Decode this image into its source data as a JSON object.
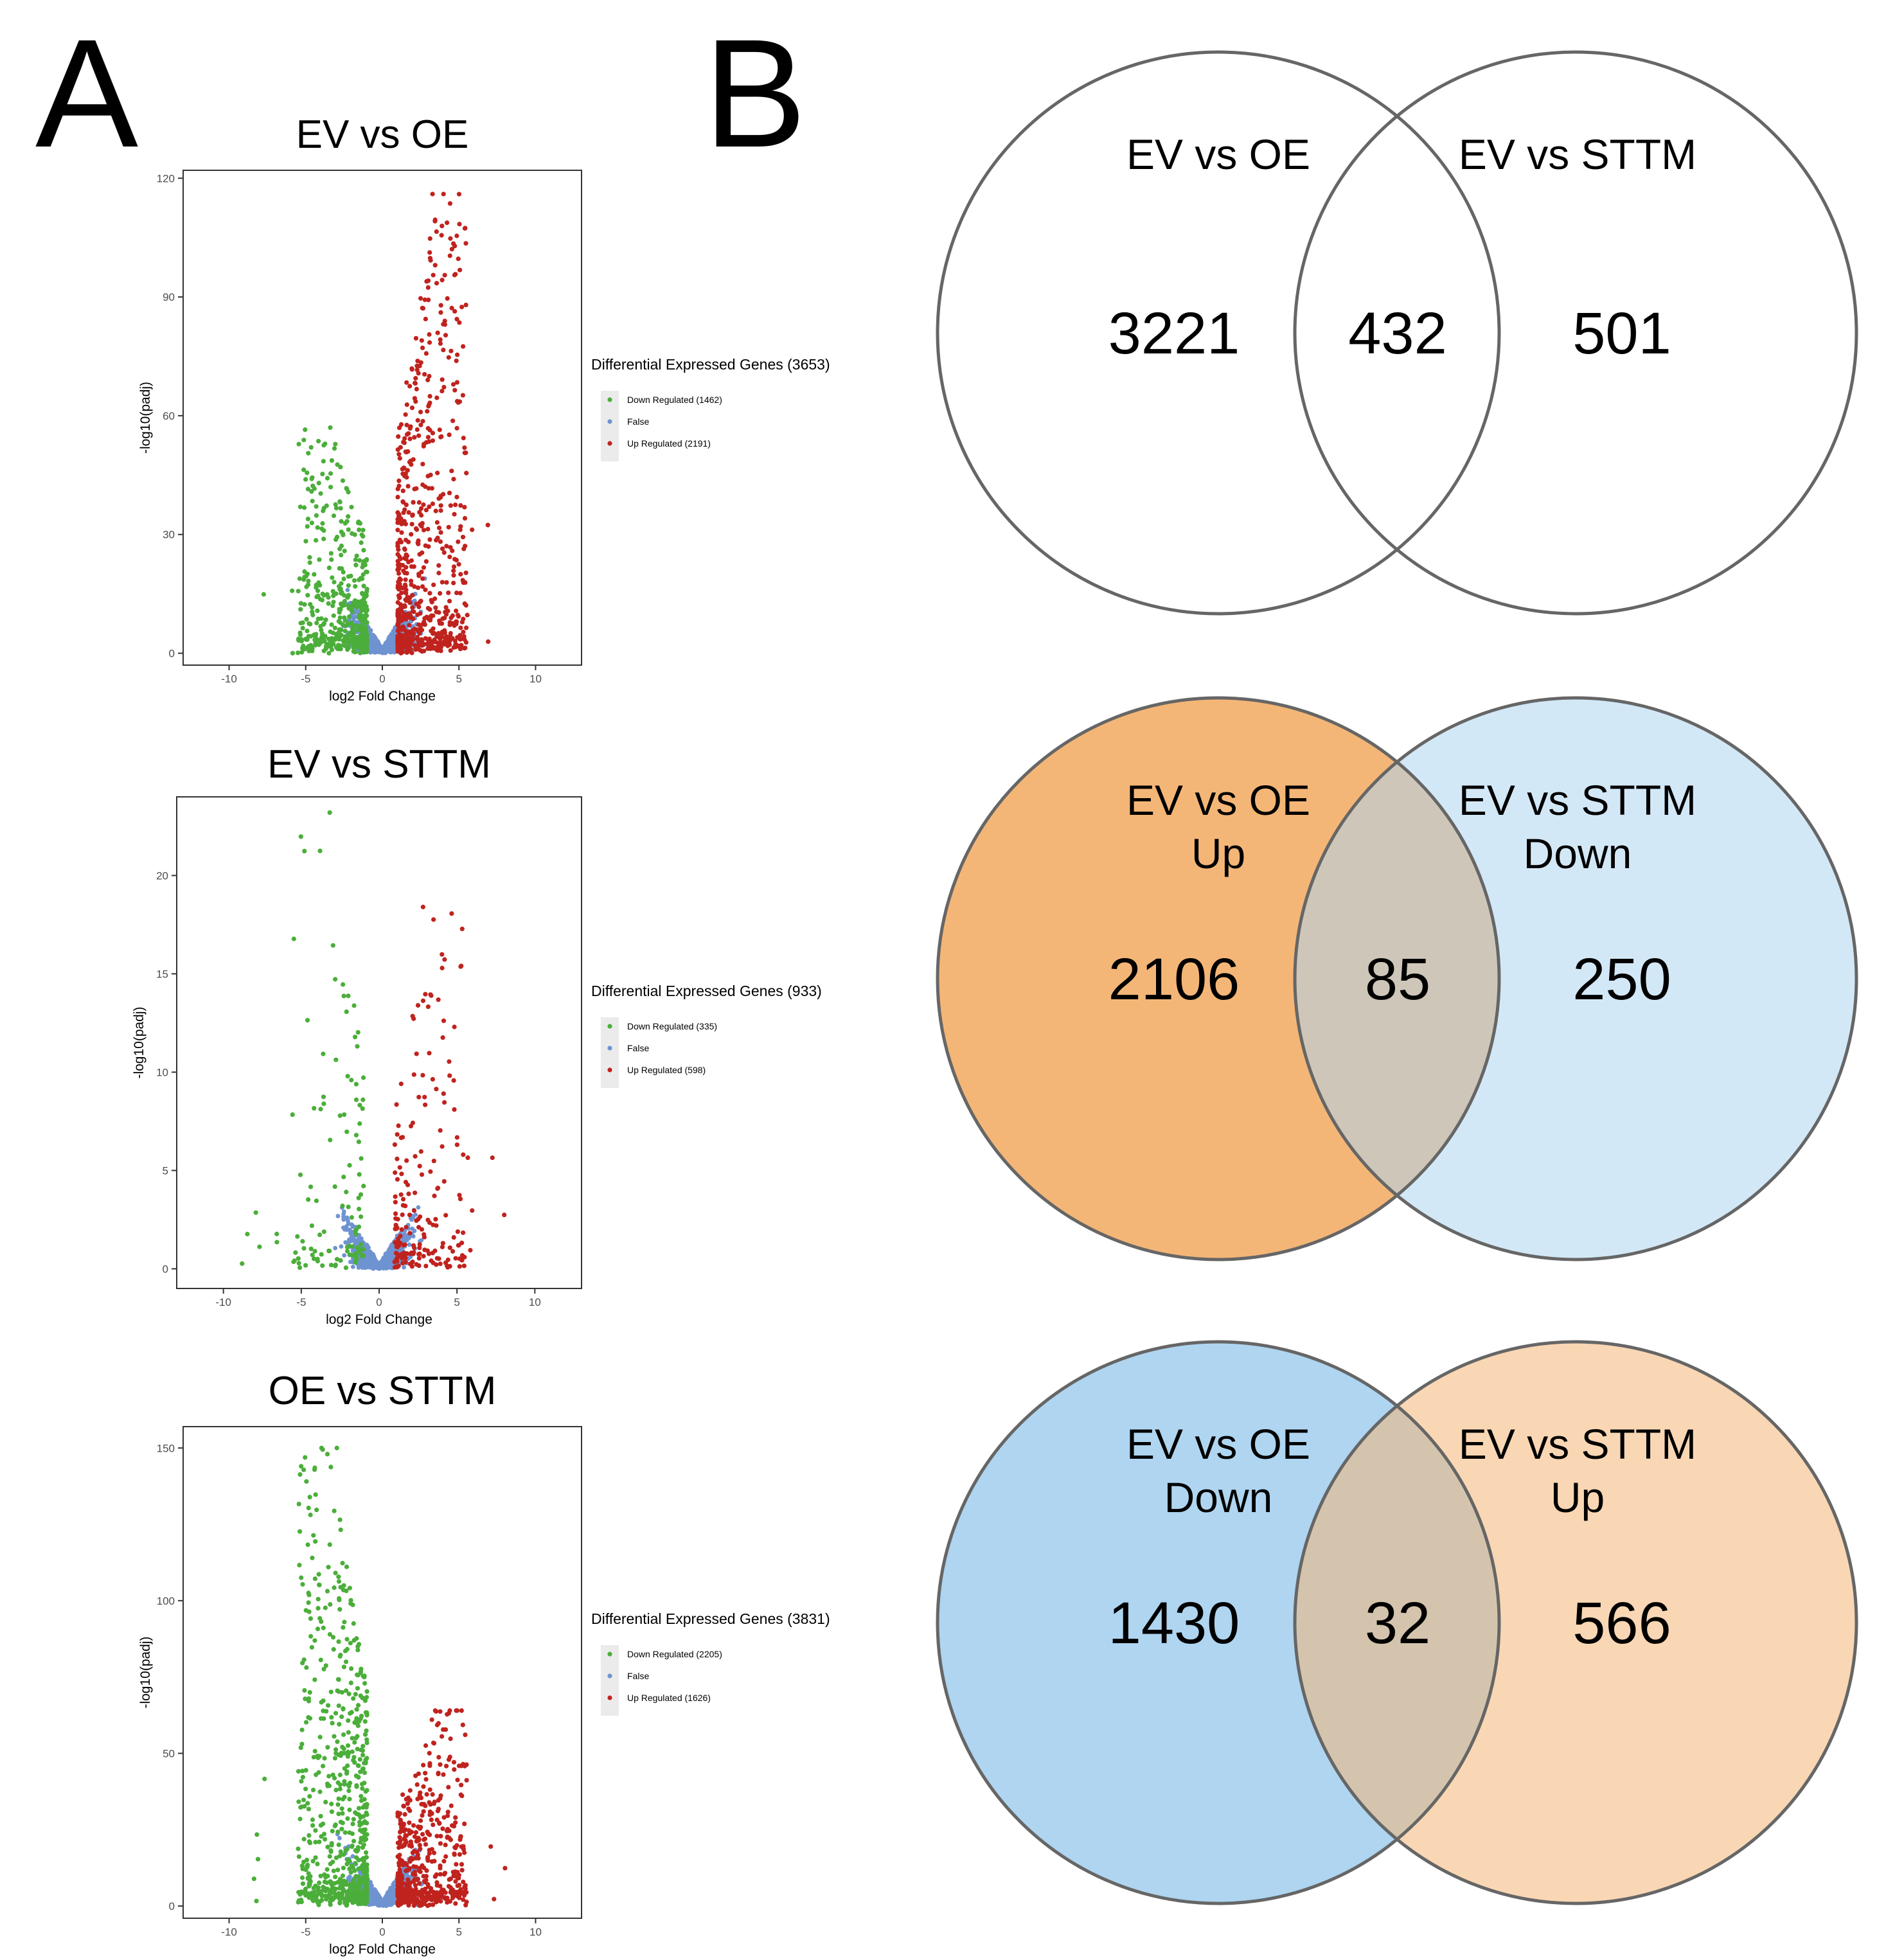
{
  "panels": {
    "a_label": "A",
    "b_label": "B"
  },
  "chart_data": [
    {
      "type": "scatter",
      "title": "EV vs OE",
      "xlabel": "log2 Fold Change",
      "ylabel": "-log10(padj)",
      "xlim": [
        -13,
        13
      ],
      "ylim": [
        -3,
        122
      ],
      "xticks": [
        -10,
        -5,
        0,
        5,
        10
      ],
      "yticks": [
        0,
        30,
        60,
        90,
        120
      ],
      "legend_title": "Differential Expressed Genes (3653)",
      "legend": [
        "Down Regulated (1462)",
        "False",
        "Up Regulated (2191)"
      ],
      "counts": {
        "down": 1462,
        "up": 2191
      },
      "peaks": {
        "down": 57,
        "up": 116
      },
      "colors": {
        "down": "#4bae3a",
        "false": "#6f93d1",
        "up": "#c0231e"
      },
      "seed": 11
    },
    {
      "type": "scatter",
      "title": "EV vs STTM",
      "xlabel": "log2 Fold Change",
      "ylabel": "-log10(padj)",
      "xlim": [
        -13,
        13
      ],
      "ylim": [
        -1,
        24
      ],
      "xticks": [
        -10,
        -5,
        0,
        5,
        10
      ],
      "yticks": [
        0,
        5,
        10,
        15,
        20
      ],
      "legend_title": "Differential Expressed Genes (933)",
      "legend": [
        "Down Regulated (335)",
        "False",
        "Up Regulated (598)"
      ],
      "counts": {
        "down": 335,
        "up": 598
      },
      "peaks": {
        "down": 23.2,
        "up": 18.4
      },
      "colors": {
        "down": "#4bae3a",
        "false": "#6f93d1",
        "up": "#c0231e"
      },
      "seed": 23
    },
    {
      "type": "scatter",
      "title": "OE vs STTM",
      "xlabel": "log2 Fold Change",
      "ylabel": "-log10(padj)",
      "xlim": [
        -13,
        13
      ],
      "ylim": [
        -4,
        157
      ],
      "xticks": [
        -10,
        -5,
        0,
        5,
        10
      ],
      "yticks": [
        0,
        50,
        100,
        150
      ],
      "legend_title": "Differential Expressed Genes (3831)",
      "legend": [
        "Down Regulated (2205)",
        "False",
        "Up Regulated (1626)"
      ],
      "counts": {
        "down": 2205,
        "up": 1626
      },
      "peaks": {
        "down": 150,
        "up": 64
      },
      "colors": {
        "down": "#4bae3a",
        "false": "#6f93d1",
        "up": "#c0231e"
      },
      "seed": 37
    }
  ],
  "venns": [
    {
      "left_label": [
        "EV vs OE"
      ],
      "right_label": [
        "EV vs STTM"
      ],
      "left_only": "3221",
      "overlap": "432",
      "right_only": "501",
      "left_fill": "none",
      "right_fill": "none"
    },
    {
      "left_label": [
        "EV vs OE",
        "Up"
      ],
      "right_label": [
        "EV vs STTM",
        "Down"
      ],
      "left_only": "2106",
      "overlap": "85",
      "right_only": "250",
      "left_fill": "#f4b677",
      "right_fill": "#afd5f0"
    },
    {
      "left_label": [
        "EV vs OE",
        "Down"
      ],
      "right_label": [
        "EV vs STTM",
        "Up"
      ],
      "left_only": "1430",
      "overlap": "32",
      "right_only": "566",
      "left_fill": "#afd5f0",
      "right_fill": "#f4b677"
    }
  ]
}
